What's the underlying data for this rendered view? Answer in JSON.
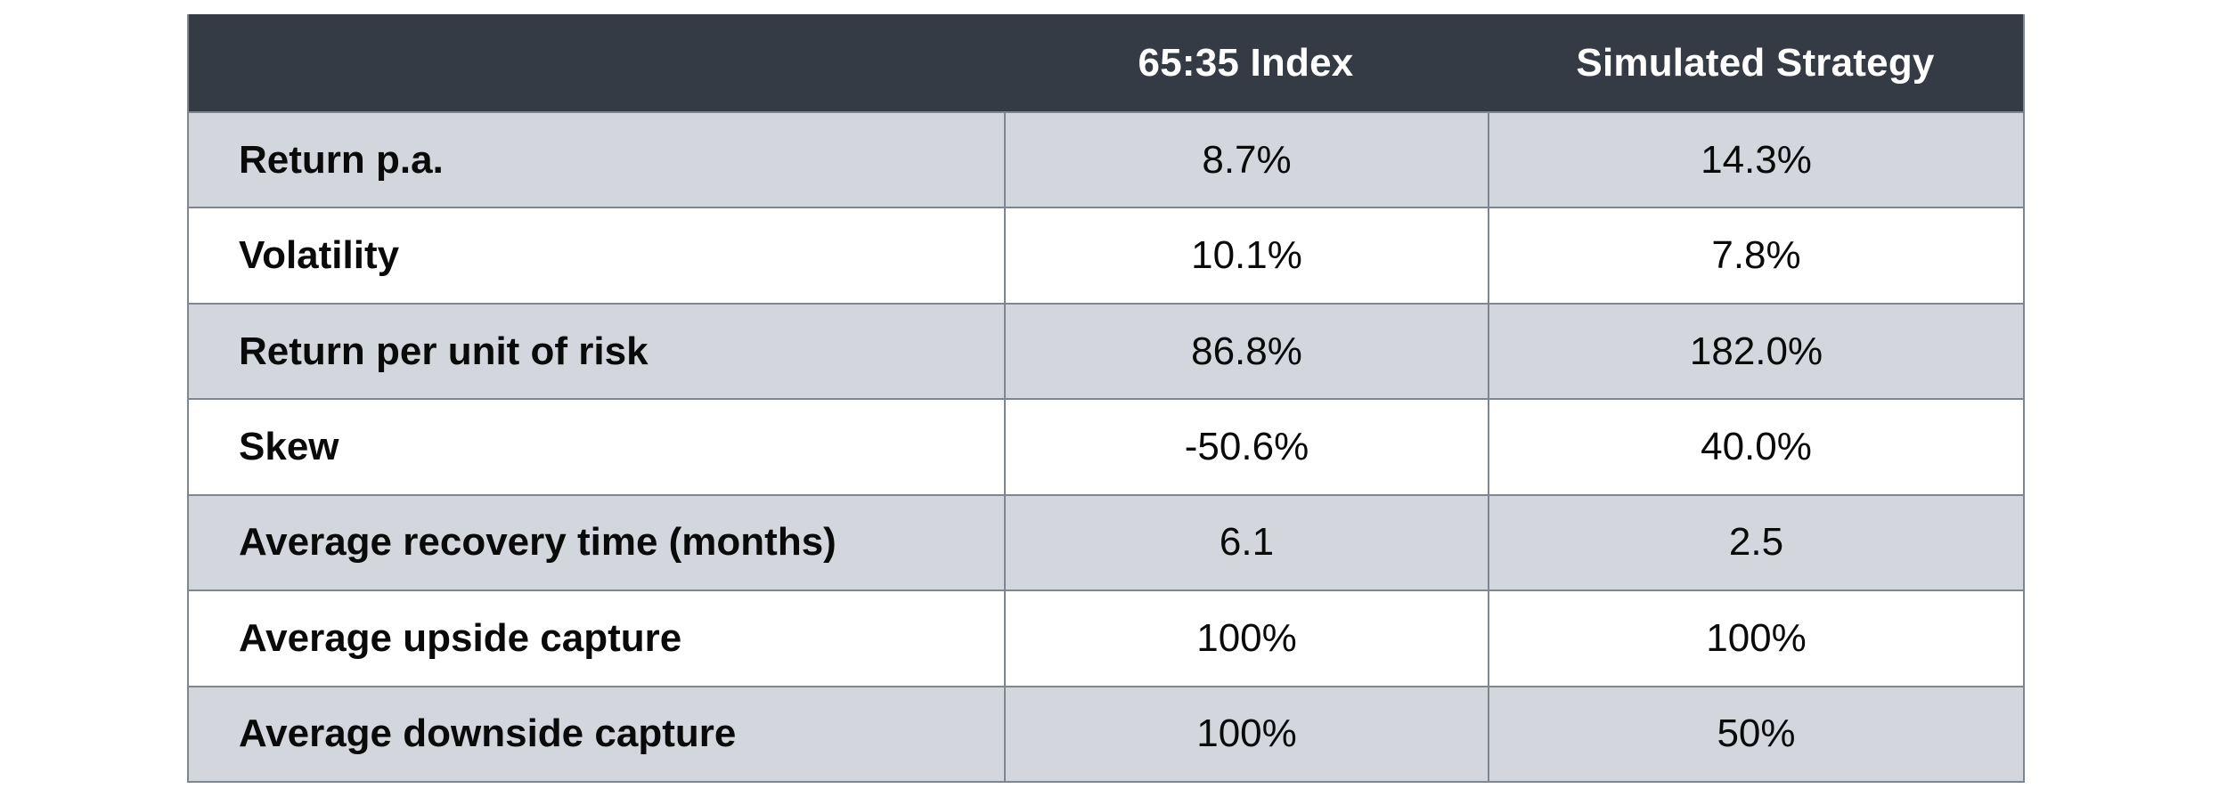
{
  "table": {
    "columns": [
      "",
      "65:35 Index",
      "Simulated Strategy"
    ],
    "rows": [
      {
        "label": "Return p.a.",
        "index": "8.7%",
        "strategy": "14.3%"
      },
      {
        "label": "Volatility",
        "index": "10.1%",
        "strategy": "7.8%"
      },
      {
        "label": "Return per unit of risk",
        "index": "86.8%",
        "strategy": "182.0%"
      },
      {
        "label": "Skew",
        "index": "-50.6%",
        "strategy": "40.0%"
      },
      {
        "label": "Average recovery time (months)",
        "index": "6.1",
        "strategy": "2.5"
      },
      {
        "label": "Average upside capture",
        "index": "100%",
        "strategy": "100%"
      },
      {
        "label": "Average downside capture",
        "index": "100%",
        "strategy": "50%"
      }
    ],
    "colors": {
      "header_bg": "#343B45",
      "header_text": "#FFFFFF",
      "row_bg": "#FFFFFF",
      "row_alt_bg": "#D3D7DD",
      "border": "#7D8691",
      "text": "#0A0A0A"
    }
  },
  "chart_data": {
    "type": "table",
    "columns": [
      "",
      "65:35 Index",
      "Simulated Strategy"
    ],
    "rows": [
      [
        "Return p.a.",
        "8.7%",
        "14.3%"
      ],
      [
        "Volatility",
        "10.1%",
        "7.8%"
      ],
      [
        "Return per unit of risk",
        "86.8%",
        "182.0%"
      ],
      [
        "Skew",
        "-50.6%",
        "40.0%"
      ],
      [
        "Average recovery time (months)",
        "6.1",
        "2.5"
      ],
      [
        "Average upside capture",
        "100%",
        "100%"
      ],
      [
        "Average downside capture",
        "100%",
        "50%"
      ]
    ]
  }
}
